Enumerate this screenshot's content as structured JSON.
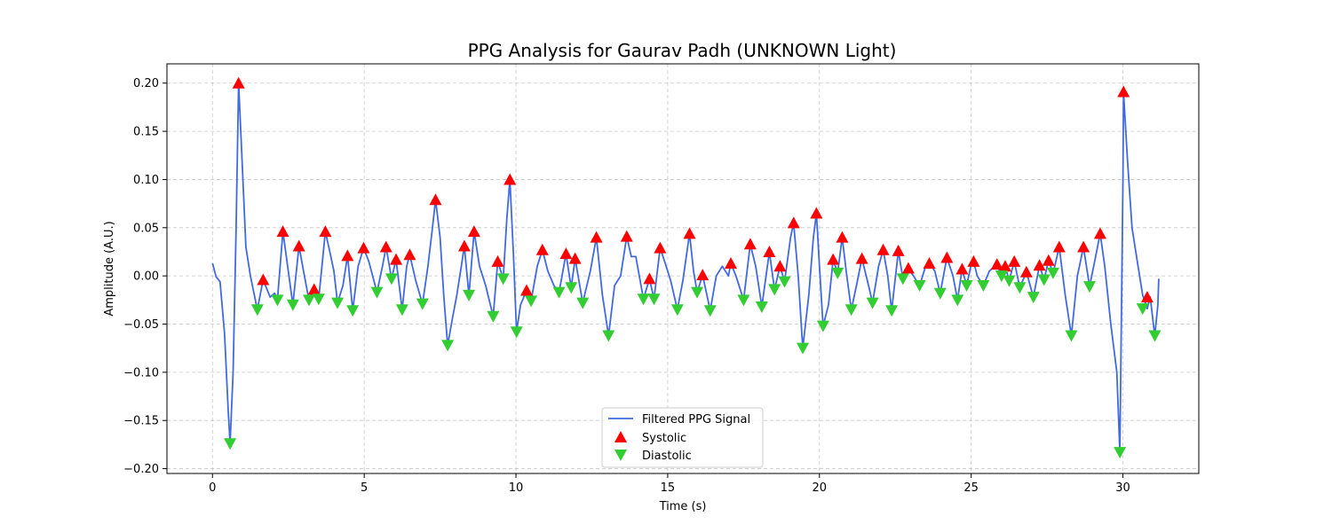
{
  "chart_data": {
    "type": "line",
    "title": "PPG Analysis for Gaurav Padh (UNKNOWN Light)",
    "xlabel": "Time (s)",
    "ylabel": "Amplitude (A.U.)",
    "xlim": [
      -1.5,
      32.5
    ],
    "ylim": [
      -0.205,
      0.22
    ],
    "x_ticks": [
      0,
      5,
      10,
      15,
      20,
      25,
      30
    ],
    "y_ticks": [
      -0.2,
      -0.15,
      -0.1,
      -0.05,
      0.0,
      0.05,
      0.1,
      0.15,
      0.2
    ],
    "x_tick_labels": [
      "0",
      "5",
      "10",
      "15",
      "20",
      "25",
      "30"
    ],
    "y_tick_labels": [
      "−0.20",
      "−0.15",
      "−0.10",
      "−0.05",
      "0.00",
      "0.05",
      "0.10",
      "0.15",
      "0.20"
    ],
    "grid": true,
    "legend_position": "lower-center",
    "colors": {
      "signal": "#4169e1",
      "systolic": "#ff0000",
      "diastolic": "#32cd32"
    },
    "series": [
      {
        "name": "Filtered PPG Signal",
        "kind": "line",
        "points": [
          [
            0.0,
            0.013
          ],
          [
            0.12,
            -0.001
          ],
          [
            0.25,
            -0.006
          ],
          [
            0.4,
            -0.06
          ],
          [
            0.52,
            -0.14
          ],
          [
            0.58,
            -0.174
          ],
          [
            0.68,
            -0.1
          ],
          [
            0.78,
            0.05
          ],
          [
            0.86,
            0.2
          ],
          [
            0.96,
            0.13
          ],
          [
            1.1,
            0.03
          ],
          [
            1.25,
            0.0
          ],
          [
            1.48,
            -0.035
          ],
          [
            1.67,
            -0.004
          ],
          [
            1.9,
            -0.022
          ],
          [
            2.05,
            -0.018
          ],
          [
            2.14,
            -0.025
          ],
          [
            2.32,
            0.046
          ],
          [
            2.52,
            0.0
          ],
          [
            2.65,
            -0.03
          ],
          [
            2.85,
            0.031
          ],
          [
            3.0,
            0.005
          ],
          [
            3.18,
            -0.025
          ],
          [
            3.35,
            -0.014
          ],
          [
            3.5,
            -0.024
          ],
          [
            3.72,
            0.046
          ],
          [
            3.9,
            0.02
          ],
          [
            4.0,
            0.005
          ],
          [
            4.12,
            -0.028
          ],
          [
            4.3,
            -0.01
          ],
          [
            4.45,
            0.021
          ],
          [
            4.62,
            -0.036
          ],
          [
            4.8,
            0.01
          ],
          [
            4.98,
            0.029
          ],
          [
            5.15,
            0.015
          ],
          [
            5.42,
            -0.017
          ],
          [
            5.6,
            0.01
          ],
          [
            5.72,
            0.03
          ],
          [
            5.9,
            -0.003
          ],
          [
            6.05,
            0.017
          ],
          [
            6.25,
            -0.035
          ],
          [
            6.4,
            0.01
          ],
          [
            6.5,
            0.022
          ],
          [
            6.7,
            -0.005
          ],
          [
            6.92,
            -0.029
          ],
          [
            7.1,
            0.01
          ],
          [
            7.25,
            0.05
          ],
          [
            7.35,
            0.079
          ],
          [
            7.5,
            0.04
          ],
          [
            7.62,
            -0.02
          ],
          [
            7.75,
            -0.072
          ],
          [
            7.9,
            -0.045
          ],
          [
            8.05,
            -0.02
          ],
          [
            8.2,
            0.01
          ],
          [
            8.3,
            0.031
          ],
          [
            8.45,
            -0.02
          ],
          [
            8.62,
            0.046
          ],
          [
            8.8,
            0.01
          ],
          [
            9.0,
            -0.01
          ],
          [
            9.25,
            -0.042
          ],
          [
            9.4,
            0.015
          ],
          [
            9.58,
            -0.003
          ],
          [
            9.7,
            0.06
          ],
          [
            9.8,
            0.1
          ],
          [
            9.92,
            0.02
          ],
          [
            10.02,
            -0.058
          ],
          [
            10.15,
            -0.03
          ],
          [
            10.35,
            -0.015
          ],
          [
            10.5,
            -0.026
          ],
          [
            10.7,
            0.01
          ],
          [
            10.87,
            0.027
          ],
          [
            11.05,
            0.005
          ],
          [
            11.25,
            -0.01
          ],
          [
            11.42,
            -0.017
          ],
          [
            11.65,
            0.023
          ],
          [
            11.82,
            -0.012
          ],
          [
            11.95,
            0.018
          ],
          [
            12.2,
            -0.028
          ],
          [
            12.45,
            0.005
          ],
          [
            12.65,
            0.04
          ],
          [
            12.85,
            -0.02
          ],
          [
            13.05,
            -0.062
          ],
          [
            13.25,
            -0.01
          ],
          [
            13.45,
            0.0
          ],
          [
            13.65,
            0.041
          ],
          [
            13.8,
            0.02
          ],
          [
            13.95,
            0.02
          ],
          [
            14.2,
            -0.024
          ],
          [
            14.4,
            -0.003
          ],
          [
            14.55,
            -0.024
          ],
          [
            14.75,
            0.029
          ],
          [
            14.95,
            0.01
          ],
          [
            15.1,
            -0.005
          ],
          [
            15.32,
            -0.035
          ],
          [
            15.5,
            -0.005
          ],
          [
            15.72,
            0.044
          ],
          [
            15.85,
            0.005
          ],
          [
            15.97,
            -0.017
          ],
          [
            16.15,
            0.001
          ],
          [
            16.4,
            -0.036
          ],
          [
            16.6,
            0.0
          ],
          [
            16.8,
            0.01
          ],
          [
            17.0,
            0.0
          ],
          [
            17.08,
            0.013
          ],
          [
            17.25,
            0.0
          ],
          [
            17.5,
            -0.025
          ],
          [
            17.72,
            0.033
          ],
          [
            17.9,
            0.01
          ],
          [
            18.1,
            -0.032
          ],
          [
            18.35,
            0.025
          ],
          [
            18.52,
            -0.014
          ],
          [
            18.7,
            0.01
          ],
          [
            18.85,
            -0.006
          ],
          [
            19.05,
            0.04
          ],
          [
            19.15,
            0.055
          ],
          [
            19.3,
            0.0
          ],
          [
            19.45,
            -0.075
          ],
          [
            19.65,
            -0.02
          ],
          [
            19.8,
            0.04
          ],
          [
            19.9,
            0.065
          ],
          [
            20.0,
            0.01
          ],
          [
            20.12,
            -0.052
          ],
          [
            20.3,
            -0.03
          ],
          [
            20.45,
            0.017
          ],
          [
            20.6,
            0.003
          ],
          [
            20.75,
            0.04
          ],
          [
            20.9,
            0.0
          ],
          [
            21.05,
            -0.035
          ],
          [
            21.22,
            -0.01
          ],
          [
            21.4,
            0.018
          ],
          [
            21.58,
            -0.005
          ],
          [
            21.75,
            -0.028
          ],
          [
            21.95,
            0.01
          ],
          [
            22.1,
            0.027
          ],
          [
            22.25,
            0.0
          ],
          [
            22.38,
            -0.036
          ],
          [
            22.6,
            0.026
          ],
          [
            22.75,
            -0.003
          ],
          [
            22.93,
            0.008
          ],
          [
            23.1,
            0.0
          ],
          [
            23.3,
            -0.01
          ],
          [
            23.5,
            0.01
          ],
          [
            23.62,
            0.013
          ],
          [
            23.8,
            0.005
          ],
          [
            23.98,
            -0.018
          ],
          [
            24.2,
            0.019
          ],
          [
            24.4,
            0.0
          ],
          [
            24.55,
            -0.025
          ],
          [
            24.7,
            0.007
          ],
          [
            24.85,
            -0.01
          ],
          [
            25.0,
            0.012
          ],
          [
            25.08,
            0.015
          ],
          [
            25.2,
            0.0
          ],
          [
            25.4,
            -0.01
          ],
          [
            25.6,
            0.005
          ],
          [
            25.85,
            0.012
          ],
          [
            26.0,
            0.0
          ],
          [
            26.12,
            0.01
          ],
          [
            26.25,
            -0.005
          ],
          [
            26.42,
            0.015
          ],
          [
            26.6,
            -0.012
          ],
          [
            26.82,
            0.004
          ],
          [
            27.05,
            -0.022
          ],
          [
            27.25,
            0.011
          ],
          [
            27.4,
            -0.004
          ],
          [
            27.55,
            0.016
          ],
          [
            27.7,
            0.003
          ],
          [
            27.9,
            0.03
          ],
          [
            28.1,
            -0.02
          ],
          [
            28.3,
            -0.062
          ],
          [
            28.5,
            0.0
          ],
          [
            28.7,
            0.03
          ],
          [
            28.9,
            -0.011
          ],
          [
            29.1,
            0.02
          ],
          [
            29.25,
            0.044
          ],
          [
            29.4,
            0.01
          ],
          [
            29.6,
            -0.05
          ],
          [
            29.8,
            -0.1
          ],
          [
            29.9,
            -0.183
          ],
          [
            30.0,
            0.1
          ],
          [
            30.02,
            0.191
          ],
          [
            30.15,
            0.12
          ],
          [
            30.3,
            0.05
          ],
          [
            30.5,
            0.01
          ],
          [
            30.65,
            -0.02
          ],
          [
            30.8,
            -0.034
          ],
          [
            30.9,
            -0.022
          ],
          [
            31.05,
            -0.062
          ],
          [
            31.15,
            -0.03
          ],
          [
            31.18,
            -0.003
          ]
        ]
      },
      {
        "name": "Systolic",
        "kind": "marker-up",
        "points": [
          [
            0.86,
            0.2
          ],
          [
            1.67,
            -0.004
          ],
          [
            2.32,
            0.046
          ],
          [
            2.85,
            0.031
          ],
          [
            3.35,
            -0.014
          ],
          [
            3.72,
            0.046
          ],
          [
            4.45,
            0.021
          ],
          [
            4.98,
            0.029
          ],
          [
            5.72,
            0.03
          ],
          [
            6.05,
            0.017
          ],
          [
            6.5,
            0.022
          ],
          [
            7.35,
            0.079
          ],
          [
            8.3,
            0.031
          ],
          [
            8.62,
            0.046
          ],
          [
            9.4,
            0.015
          ],
          [
            9.8,
            0.1
          ],
          [
            10.35,
            -0.015
          ],
          [
            10.87,
            0.027
          ],
          [
            11.65,
            0.023
          ],
          [
            11.95,
            0.018
          ],
          [
            12.65,
            0.04
          ],
          [
            13.65,
            0.041
          ],
          [
            14.4,
            -0.003
          ],
          [
            14.75,
            0.029
          ],
          [
            15.72,
            0.044
          ],
          [
            16.15,
            0.001
          ],
          [
            17.08,
            0.013
          ],
          [
            17.72,
            0.033
          ],
          [
            18.35,
            0.025
          ],
          [
            18.7,
            0.01
          ],
          [
            19.15,
            0.055
          ],
          [
            19.9,
            0.065
          ],
          [
            20.45,
            0.017
          ],
          [
            20.75,
            0.04
          ],
          [
            21.4,
            0.018
          ],
          [
            22.1,
            0.027
          ],
          [
            22.6,
            0.026
          ],
          [
            22.93,
            0.008
          ],
          [
            23.62,
            0.013
          ],
          [
            24.2,
            0.019
          ],
          [
            24.7,
            0.007
          ],
          [
            25.08,
            0.015
          ],
          [
            25.85,
            0.012
          ],
          [
            26.12,
            0.01
          ],
          [
            26.42,
            0.015
          ],
          [
            26.82,
            0.004
          ],
          [
            27.25,
            0.011
          ],
          [
            27.55,
            0.016
          ],
          [
            27.9,
            0.03
          ],
          [
            28.7,
            0.03
          ],
          [
            29.25,
            0.044
          ],
          [
            30.02,
            0.191
          ],
          [
            30.8,
            -0.022
          ]
        ]
      },
      {
        "name": "Diastolic",
        "kind": "marker-down",
        "points": [
          [
            0.58,
            -0.174
          ],
          [
            1.48,
            -0.035
          ],
          [
            2.14,
            -0.025
          ],
          [
            2.65,
            -0.03
          ],
          [
            3.18,
            -0.025
          ],
          [
            3.5,
            -0.024
          ],
          [
            4.12,
            -0.028
          ],
          [
            4.62,
            -0.036
          ],
          [
            5.42,
            -0.017
          ],
          [
            5.9,
            -0.003
          ],
          [
            6.25,
            -0.035
          ],
          [
            6.92,
            -0.029
          ],
          [
            7.75,
            -0.072
          ],
          [
            8.45,
            -0.02
          ],
          [
            9.25,
            -0.042
          ],
          [
            9.58,
            -0.003
          ],
          [
            10.02,
            -0.058
          ],
          [
            10.5,
            -0.026
          ],
          [
            11.42,
            -0.017
          ],
          [
            11.82,
            -0.012
          ],
          [
            12.2,
            -0.028
          ],
          [
            13.05,
            -0.062
          ],
          [
            14.2,
            -0.024
          ],
          [
            14.55,
            -0.024
          ],
          [
            15.32,
            -0.035
          ],
          [
            15.97,
            -0.017
          ],
          [
            16.4,
            -0.036
          ],
          [
            17.5,
            -0.025
          ],
          [
            18.1,
            -0.032
          ],
          [
            18.52,
            -0.014
          ],
          [
            18.85,
            -0.006
          ],
          [
            19.45,
            -0.075
          ],
          [
            20.12,
            -0.052
          ],
          [
            20.6,
            0.003
          ],
          [
            21.05,
            -0.035
          ],
          [
            21.75,
            -0.028
          ],
          [
            22.38,
            -0.036
          ],
          [
            22.75,
            -0.003
          ],
          [
            23.3,
            -0.01
          ],
          [
            23.98,
            -0.018
          ],
          [
            24.55,
            -0.025
          ],
          [
            24.85,
            -0.01
          ],
          [
            25.4,
            -0.01
          ],
          [
            26.0,
            0.0
          ],
          [
            26.25,
            -0.005
          ],
          [
            26.6,
            -0.012
          ],
          [
            27.05,
            -0.022
          ],
          [
            27.4,
            -0.004
          ],
          [
            27.7,
            0.003
          ],
          [
            28.3,
            -0.062
          ],
          [
            28.9,
            -0.011
          ],
          [
            29.9,
            -0.183
          ],
          [
            30.65,
            -0.034
          ],
          [
            31.05,
            -0.062
          ]
        ]
      }
    ]
  }
}
